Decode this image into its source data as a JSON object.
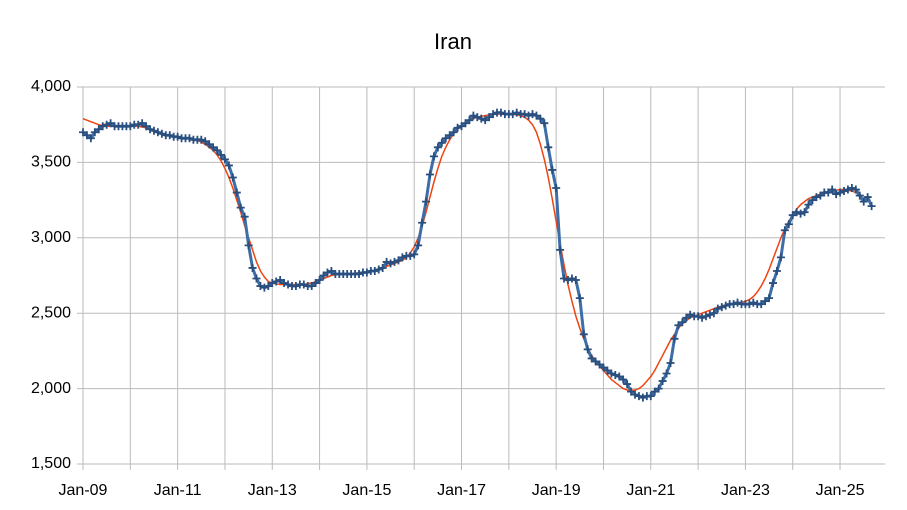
{
  "chart_data": {
    "type": "line",
    "title": "Iran",
    "categories": [
      "Jan-09",
      null,
      null,
      null,
      null,
      null,
      null,
      null,
      null,
      null,
      null,
      null,
      null,
      null,
      null,
      null,
      null,
      null,
      null,
      null,
      null,
      null,
      null,
      null,
      "Jan-11",
      null,
      null,
      null,
      null,
      null,
      null,
      null,
      null,
      null,
      null,
      null,
      null,
      null,
      null,
      null,
      null,
      null,
      null,
      null,
      null,
      null,
      null,
      null,
      "Jan-13",
      null,
      null,
      null,
      null,
      null,
      null,
      null,
      null,
      null,
      null,
      null,
      null,
      null,
      null,
      null,
      null,
      null,
      null,
      null,
      null,
      null,
      null,
      null,
      "Jan-15",
      null,
      null,
      null,
      null,
      null,
      null,
      null,
      null,
      null,
      null,
      null,
      null,
      null,
      null,
      null,
      null,
      null,
      null,
      null,
      null,
      null,
      null,
      null,
      "Jan-17",
      null,
      null,
      null,
      null,
      null,
      null,
      null,
      null,
      null,
      null,
      null,
      null,
      null,
      null,
      null,
      null,
      null,
      null,
      null,
      null,
      null,
      null,
      null,
      "Jan-19",
      null,
      null,
      null,
      null,
      null,
      null,
      null,
      null,
      null,
      null,
      null,
      null,
      null,
      null,
      null,
      null,
      null,
      null,
      null,
      null,
      null,
      null,
      null,
      "Jan-21",
      null,
      null,
      null,
      null,
      null,
      null,
      null,
      null,
      null,
      null,
      null,
      null,
      null,
      null,
      null,
      null,
      null,
      null,
      null,
      null,
      null,
      null,
      null,
      "Jan-23",
      null,
      null,
      null,
      null,
      null,
      null,
      null,
      null,
      null,
      null,
      null,
      null,
      null,
      null,
      null,
      null,
      null,
      null,
      null,
      null,
      null,
      null,
      null,
      "Jan-25",
      null,
      null,
      null,
      null,
      null,
      null,
      null,
      null
    ],
    "series": [
      {
        "color": "#3d6ea8",
        "values": [
          3700,
          3680,
          3660,
          3700,
          3720,
          3740,
          3750,
          3760,
          3740,
          3740,
          3740,
          3740,
          3740,
          3750,
          3750,
          3760,
          3740,
          3720,
          3710,
          3700,
          3690,
          3680,
          3680,
          3670,
          3670,
          3660,
          3660,
          3660,
          3650,
          3650,
          3650,
          3640,
          3620,
          3600,
          3580,
          3550,
          3520,
          3480,
          3400,
          3300,
          3200,
          3140,
          2950,
          2800,
          2730,
          2680,
          2670,
          2680,
          2700,
          2710,
          2720,
          2700,
          2690,
          2680,
          2680,
          2690,
          2690,
          2680,
          2680,
          2700,
          2720,
          2750,
          2770,
          2780,
          2760,
          2760,
          2760,
          2760,
          2760,
          2760,
          2760,
          2770,
          2770,
          2780,
          2780,
          2790,
          2800,
          2840,
          2830,
          2840,
          2850,
          2870,
          2880,
          2880,
          2890,
          2950,
          3100,
          3240,
          3420,
          3540,
          3600,
          3630,
          3660,
          3680,
          3700,
          3730,
          3740,
          3760,
          3780,
          3810,
          3800,
          3790,
          3780,
          3800,
          3820,
          3830,
          3830,
          3820,
          3820,
          3820,
          3830,
          3820,
          3820,
          3810,
          3820,
          3810,
          3790,
          3760,
          3600,
          3450,
          3330,
          2920,
          2730,
          2720,
          2730,
          2720,
          2600,
          2360,
          2260,
          2200,
          2180,
          2160,
          2140,
          2120,
          2100,
          2090,
          2080,
          2060,
          2030,
          1980,
          1960,
          1950,
          1940,
          1950,
          1950,
          1980,
          2000,
          2050,
          2100,
          2170,
          2330,
          2420,
          2440,
          2470,
          2490,
          2480,
          2480,
          2470,
          2480,
          2490,
          2500,
          2530,
          2540,
          2550,
          2560,
          2560,
          2570,
          2560,
          2560,
          2560,
          2570,
          2560,
          2560,
          2580,
          2600,
          2700,
          2780,
          2870,
          3050,
          3090,
          3150,
          3170,
          3160,
          3170,
          3220,
          3250,
          3270,
          3280,
          3300,
          3300,
          3320,
          3290,
          3300,
          3310,
          3320,
          3330,
          3320,
          3280,
          3240,
          3270,
          3210
        ]
      },
      {
        "color": "#ee4411",
        "values": [
          3790,
          3780,
          3770,
          3760,
          3750,
          3745,
          3740,
          3740,
          3740,
          3740,
          3740,
          3740,
          3740,
          3740,
          3740,
          3735,
          3730,
          3720,
          3710,
          3700,
          3690,
          3685,
          3680,
          3675,
          3670,
          3665,
          3660,
          3655,
          3650,
          3645,
          3635,
          3620,
          3600,
          3580,
          3550,
          3510,
          3460,
          3400,
          3330,
          3250,
          3170,
          3080,
          3000,
          2920,
          2840,
          2780,
          2740,
          2710,
          2700,
          2695,
          2690,
          2690,
          2690,
          2690,
          2690,
          2690,
          2690,
          2695,
          2700,
          2710,
          2720,
          2730,
          2740,
          2750,
          2755,
          2760,
          2760,
          2760,
          2765,
          2765,
          2770,
          2770,
          2775,
          2780,
          2785,
          2790,
          2800,
          2810,
          2820,
          2830,
          2840,
          2850,
          2870,
          2900,
          2940,
          3000,
          3080,
          3170,
          3270,
          3370,
          3460,
          3540,
          3600,
          3650,
          3690,
          3720,
          3740,
          3760,
          3780,
          3790,
          3800,
          3805,
          3810,
          3815,
          3820,
          3820,
          3820,
          3820,
          3820,
          3820,
          3815,
          3810,
          3800,
          3780,
          3750,
          3700,
          3620,
          3520,
          3400,
          3260,
          3110,
          2960,
          2820,
          2690,
          2580,
          2480,
          2400,
          2330,
          2270,
          2220,
          2180,
          2150,
          2120,
          2090,
          2060,
          2040,
          2020,
          2000,
          1990,
          1990,
          1990,
          2000,
          2020,
          2050,
          2080,
          2120,
          2170,
          2220,
          2270,
          2320,
          2360,
          2400,
          2430,
          2450,
          2470,
          2480,
          2490,
          2500,
          2510,
          2520,
          2530,
          2540,
          2545,
          2550,
          2555,
          2560,
          2565,
          2570,
          2580,
          2590,
          2610,
          2640,
          2680,
          2730,
          2790,
          2860,
          2930,
          3000,
          3060,
          3110,
          3150,
          3190,
          3220,
          3240,
          3260,
          3270,
          3280,
          3290,
          3300,
          3305,
          3310,
          3315,
          3320,
          3320,
          3315,
          3310,
          3300,
          3290,
          null,
          null,
          null
        ]
      }
    ],
    "ylim": [
      1500,
      4000
    ],
    "yticks": [
      {
        "value": 1500,
        "label": "1,500"
      },
      {
        "value": 2000,
        "label": "2,000"
      },
      {
        "value": 2500,
        "label": "2,500"
      },
      {
        "value": 3000,
        "label": "3,000"
      },
      {
        "value": 3500,
        "label": "3,500"
      },
      {
        "value": 4000,
        "label": "4,000"
      }
    ],
    "grid": true
  }
}
